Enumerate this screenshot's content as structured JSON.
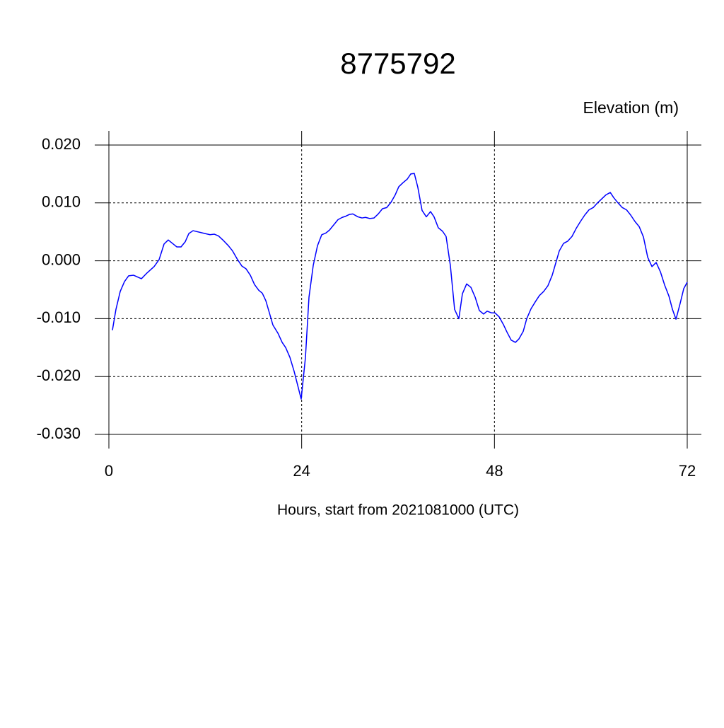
{
  "chart_data": {
    "type": "line",
    "title": "8775792",
    "ylabel": "Elevation (m)",
    "xlabel": "Hours, start from 2021081000 (UTC)",
    "xlim": [
      0,
      72
    ],
    "xticks": [
      0,
      24,
      48,
      72
    ],
    "ylim": [
      -0.03,
      0.02
    ],
    "yticks": [
      {
        "value": -0.03,
        "label": "-0.030"
      },
      {
        "value": -0.02,
        "label": "-0.020"
      },
      {
        "value": -0.01,
        "label": "-0.010"
      },
      {
        "value": 0,
        "label": "0.000"
      },
      {
        "value": 0.01,
        "label": "0.010"
      },
      {
        "value": 0.02,
        "label": "0.020"
      }
    ],
    "grid": true,
    "series": [
      {
        "color": "#0000ff",
        "x": [
          0.44,
          0.88,
          1.41,
          1.94,
          2.46,
          3.08,
          4.05,
          4.75,
          5.63,
          6.25,
          6.87,
          7.39,
          7.92,
          8.45,
          8.98,
          9.51,
          9.95,
          10.48,
          11.97,
          12.59,
          13.11,
          13.64,
          14.26,
          14.88,
          15.4,
          16.02,
          16.55,
          17.08,
          17.61,
          18.13,
          18.66,
          19.1,
          19.54,
          19.98,
          20.42,
          21.04,
          21.57,
          22.01,
          22.54,
          23.06,
          23.5,
          23.94,
          24.47,
          24.91,
          25.44,
          25.97,
          26.5,
          27.02,
          27.46,
          27.99,
          28.52,
          29.05,
          29.49,
          29.93,
          30.37,
          30.99,
          31.51,
          31.95,
          32.48,
          33.01,
          33.54,
          34.06,
          34.59,
          35.12,
          35.65,
          36.09,
          36.62,
          37.14,
          37.58,
          38.02,
          38.46,
          38.99,
          39.52,
          40.04,
          40.48,
          41.01,
          41.54,
          41.98,
          42.51,
          43.04,
          43.57,
          44.01,
          44.54,
          45.07,
          45.6,
          46.12,
          46.65,
          47.09,
          47.62,
          48.06,
          48.59,
          49.11,
          49.55,
          50.08,
          50.61,
          51.05,
          51.58,
          52.02,
          52.55,
          53.08,
          53.6,
          54.13,
          54.66,
          55.19,
          55.63,
          56.07,
          56.6,
          57.13,
          57.65,
          58.18,
          58.71,
          59.24,
          59.77,
          60.3,
          60.83,
          61.36,
          61.89,
          62.42,
          62.85,
          63.38,
          63.91,
          64.44,
          64.96,
          65.49,
          66.02,
          66.55,
          67.08,
          67.61,
          68.13,
          68.66,
          69.19,
          69.72,
          70.16,
          70.6,
          71.13,
          71.57,
          72.0
        ],
        "values": [
          -0.012,
          -0.0084,
          -0.0053,
          -0.0036,
          -0.0026,
          -0.0025,
          -0.0031,
          -0.0021,
          -0.001,
          0.0002,
          0.0029,
          0.0036,
          0.003,
          0.0024,
          0.0024,
          0.0033,
          0.0047,
          0.0052,
          0.0047,
          0.0045,
          0.0046,
          0.0043,
          0.0035,
          0.0026,
          0.0017,
          0.0002,
          -0.0009,
          -0.0014,
          -0.0025,
          -0.0041,
          -0.0051,
          -0.0056,
          -0.0069,
          -0.009,
          -0.0111,
          -0.0125,
          -0.0141,
          -0.015,
          -0.0167,
          -0.0191,
          -0.0215,
          -0.0239,
          -0.0167,
          -0.0063,
          -0.0008,
          0.0026,
          0.0045,
          0.0048,
          0.0053,
          0.0062,
          0.0071,
          0.0075,
          0.0077,
          0.008,
          0.0081,
          0.0076,
          0.0074,
          0.0075,
          0.0073,
          0.0074,
          0.0081,
          0.009,
          0.0092,
          0.0101,
          0.0114,
          0.0128,
          0.0135,
          0.0141,
          0.015,
          0.0151,
          0.0127,
          0.0087,
          0.0076,
          0.0085,
          0.0076,
          0.0057,
          0.0051,
          0.0042,
          -0.0008,
          -0.0084,
          -0.01,
          -0.0057,
          -0.004,
          -0.0046,
          -0.0063,
          -0.0086,
          -0.0092,
          -0.0087,
          -0.009,
          -0.009,
          -0.0097,
          -0.011,
          -0.0123,
          -0.0137,
          -0.0141,
          -0.0135,
          -0.0122,
          -0.01,
          -0.0083,
          -0.0071,
          -0.006,
          -0.0053,
          -0.0043,
          -0.0025,
          -0.0004,
          0.0017,
          0.003,
          0.0034,
          0.0042,
          0.0056,
          0.0068,
          0.0079,
          0.0088,
          0.0092,
          0.01,
          0.0107,
          0.0114,
          0.0118,
          0.0109,
          0.01,
          0.0092,
          0.0088,
          0.0079,
          0.0068,
          0.0059,
          0.0041,
          0.0006,
          -0.001,
          -0.0003,
          -0.0019,
          -0.0042,
          -0.0061,
          -0.0084,
          -0.0101,
          -0.0073,
          -0.0048,
          -0.0037
        ]
      }
    ]
  }
}
